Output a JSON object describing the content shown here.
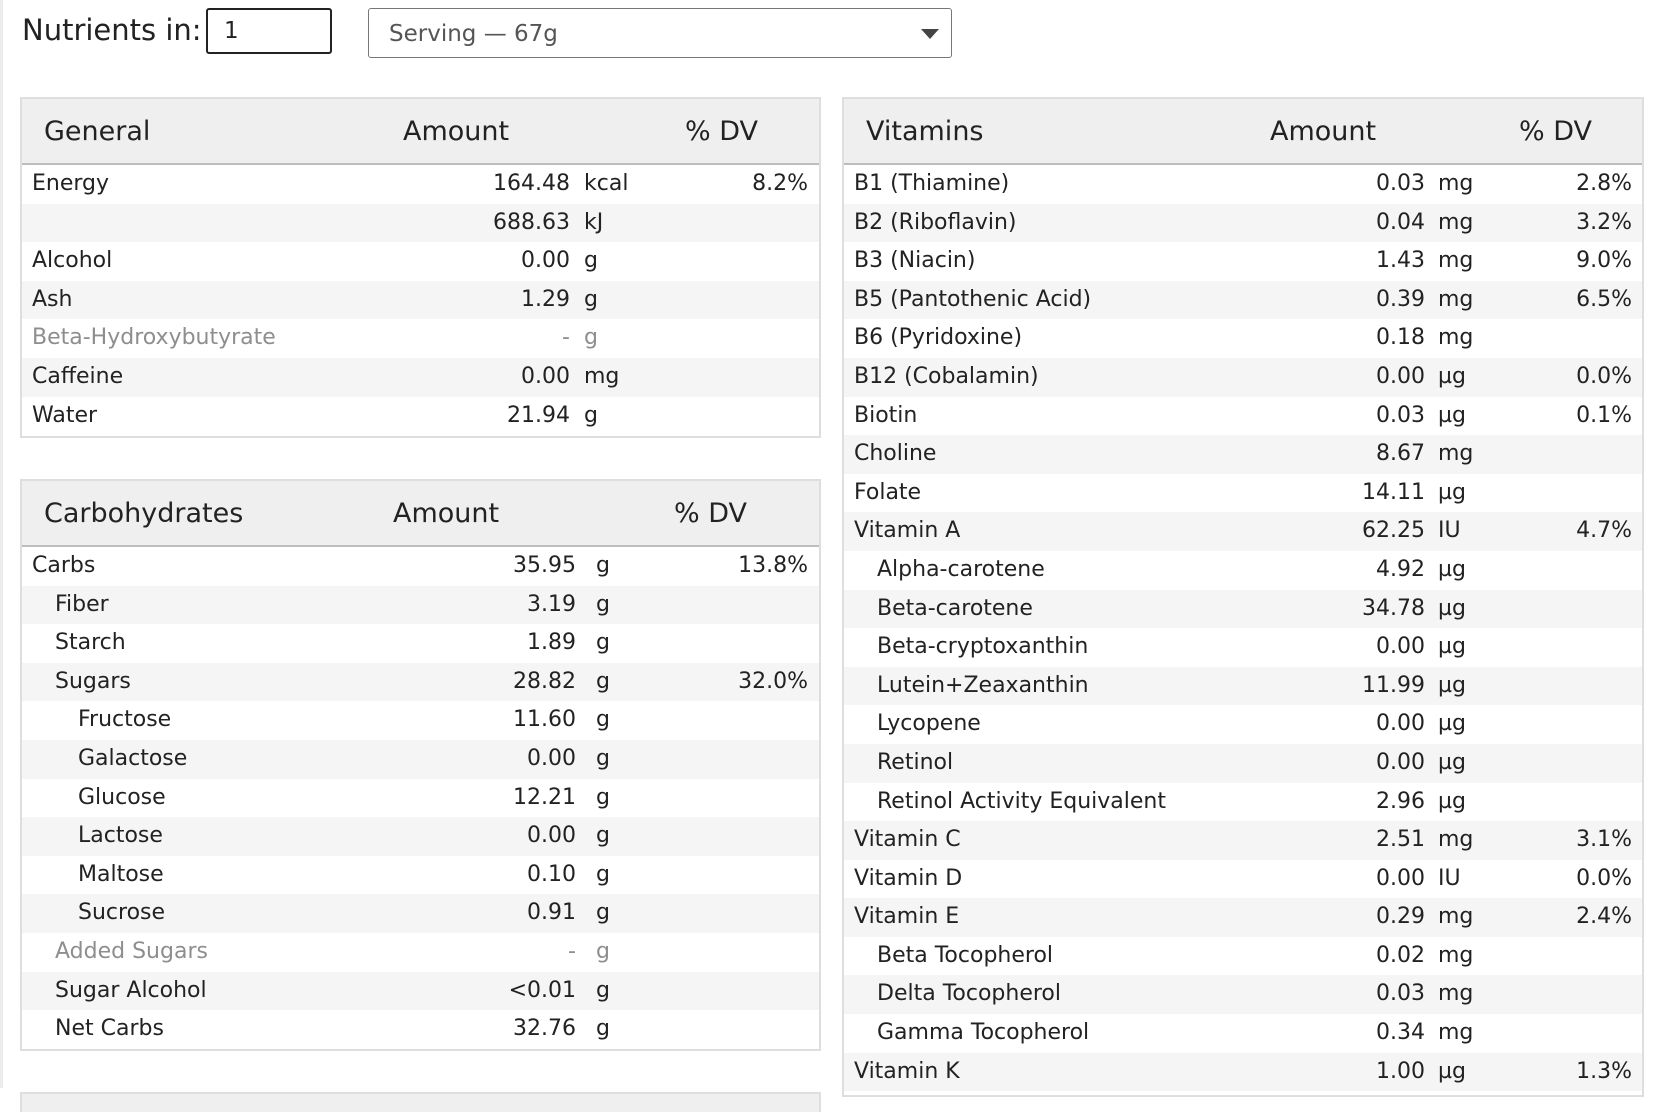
{
  "header": {
    "label": "Nutrients in:",
    "quantity": "1",
    "serving": "Serving — 67g"
  },
  "general": {
    "title": "General",
    "amount_header": "Amount",
    "dv_header": "% DV",
    "rows": [
      {
        "name": "Energy",
        "amount": "164.48",
        "unit": "kcal",
        "dv": "8.2%"
      },
      {
        "name": "",
        "amount": "688.63",
        "unit": "kJ",
        "dv": ""
      },
      {
        "name": "Alcohol",
        "amount": "0.00",
        "unit": "g",
        "dv": ""
      },
      {
        "name": "Ash",
        "amount": "1.29",
        "unit": "g",
        "dv": ""
      },
      {
        "name": "Beta-Hydroxybutyrate",
        "amount": "-",
        "unit": "g",
        "dv": "",
        "muted": true
      },
      {
        "name": "Caffeine",
        "amount": "0.00",
        "unit": "mg",
        "dv": ""
      },
      {
        "name": "Water",
        "amount": "21.94",
        "unit": "g",
        "dv": ""
      }
    ]
  },
  "carbohydrates": {
    "title": "Carbohydrates",
    "amount_header": "Amount",
    "dv_header": "% DV",
    "rows": [
      {
        "name": "Carbs",
        "amount": "35.95",
        "unit": "g",
        "dv": "13.8%",
        "indent": 0
      },
      {
        "name": "Fiber",
        "amount": "3.19",
        "unit": "g",
        "dv": "",
        "indent": 1
      },
      {
        "name": "Starch",
        "amount": "1.89",
        "unit": "g",
        "dv": "",
        "indent": 1
      },
      {
        "name": "Sugars",
        "amount": "28.82",
        "unit": "g",
        "dv": "32.0%",
        "indent": 1
      },
      {
        "name": "Fructose",
        "amount": "11.60",
        "unit": "g",
        "dv": "",
        "indent": 2
      },
      {
        "name": "Galactose",
        "amount": "0.00",
        "unit": "g",
        "dv": "",
        "indent": 2
      },
      {
        "name": "Glucose",
        "amount": "12.21",
        "unit": "g",
        "dv": "",
        "indent": 2
      },
      {
        "name": "Lactose",
        "amount": "0.00",
        "unit": "g",
        "dv": "",
        "indent": 2
      },
      {
        "name": "Maltose",
        "amount": "0.10",
        "unit": "g",
        "dv": "",
        "indent": 2
      },
      {
        "name": "Sucrose",
        "amount": "0.91",
        "unit": "g",
        "dv": "",
        "indent": 2
      },
      {
        "name": "Added Sugars",
        "amount": "-",
        "unit": "g",
        "dv": "",
        "indent": 1,
        "muted": true
      },
      {
        "name": "Sugar Alcohol",
        "amount": "<0.01",
        "unit": "g",
        "dv": "",
        "indent": 1
      },
      {
        "name": "Net Carbs",
        "amount": "32.76",
        "unit": "g",
        "dv": "",
        "indent": 1
      }
    ]
  },
  "vitamins": {
    "title": "Vitamins",
    "amount_header": "Amount",
    "dv_header": "% DV",
    "rows": [
      {
        "name": "B1 (Thiamine)",
        "amount": "0.03",
        "unit": "mg",
        "dv": "2.8%",
        "indent": 0
      },
      {
        "name": "B2 (Riboflavin)",
        "amount": "0.04",
        "unit": "mg",
        "dv": "3.2%",
        "indent": 0
      },
      {
        "name": "B3 (Niacin)",
        "amount": "1.43",
        "unit": "mg",
        "dv": "9.0%",
        "indent": 0
      },
      {
        "name": "B5 (Pantothenic Acid)",
        "amount": "0.39",
        "unit": "mg",
        "dv": "6.5%",
        "indent": 0
      },
      {
        "name": "B6 (Pyridoxine)",
        "amount": "0.18",
        "unit": "mg",
        "dv": "",
        "indent": 0
      },
      {
        "name": "B12 (Cobalamin)",
        "amount": "0.00",
        "unit": "µg",
        "dv": "0.0%",
        "indent": 0
      },
      {
        "name": "Biotin",
        "amount": "0.03",
        "unit": "µg",
        "dv": "0.1%",
        "indent": 0
      },
      {
        "name": "Choline",
        "amount": "8.67",
        "unit": "mg",
        "dv": "",
        "indent": 0
      },
      {
        "name": "Folate",
        "amount": "14.11",
        "unit": "µg",
        "dv": "",
        "indent": 0
      },
      {
        "name": "Vitamin A",
        "amount": "62.25",
        "unit": "IU",
        "dv": "4.7%",
        "indent": 0
      },
      {
        "name": "Alpha-carotene",
        "amount": "4.92",
        "unit": "µg",
        "dv": "",
        "indent": 1
      },
      {
        "name": "Beta-carotene",
        "amount": "34.78",
        "unit": "µg",
        "dv": "",
        "indent": 1
      },
      {
        "name": "Beta-cryptoxanthin",
        "amount": "0.00",
        "unit": "µg",
        "dv": "",
        "indent": 1
      },
      {
        "name": "Lutein+Zeaxanthin",
        "amount": "11.99",
        "unit": "µg",
        "dv": "",
        "indent": 1
      },
      {
        "name": "Lycopene",
        "amount": "0.00",
        "unit": "µg",
        "dv": "",
        "indent": 1
      },
      {
        "name": "Retinol",
        "amount": "0.00",
        "unit": "µg",
        "dv": "",
        "indent": 1
      },
      {
        "name": "Retinol Activity Equivalent",
        "amount": "2.96",
        "unit": "µg",
        "dv": "",
        "indent": 1
      },
      {
        "name": "Vitamin C",
        "amount": "2.51",
        "unit": "mg",
        "dv": "3.1%",
        "indent": 0
      },
      {
        "name": "Vitamin D",
        "amount": "0.00",
        "unit": "IU",
        "dv": "0.0%",
        "indent": 0
      },
      {
        "name": "Vitamin E",
        "amount": "0.29",
        "unit": "mg",
        "dv": "2.4%",
        "indent": 0
      },
      {
        "name": "Beta Tocopherol",
        "amount": "0.02",
        "unit": "mg",
        "dv": "",
        "indent": 1
      },
      {
        "name": "Delta Tocopherol",
        "amount": "0.03",
        "unit": "mg",
        "dv": "",
        "indent": 1
      },
      {
        "name": "Gamma Tocopherol",
        "amount": "0.34",
        "unit": "mg",
        "dv": "",
        "indent": 1
      },
      {
        "name": "Vitamin K",
        "amount": "1.00",
        "unit": "µg",
        "dv": "1.3%",
        "indent": 0
      }
    ]
  },
  "colors": {
    "header_bg": "#efefef",
    "stripe": "#f5f5f5",
    "muted_text": "#8e8e8e"
  }
}
